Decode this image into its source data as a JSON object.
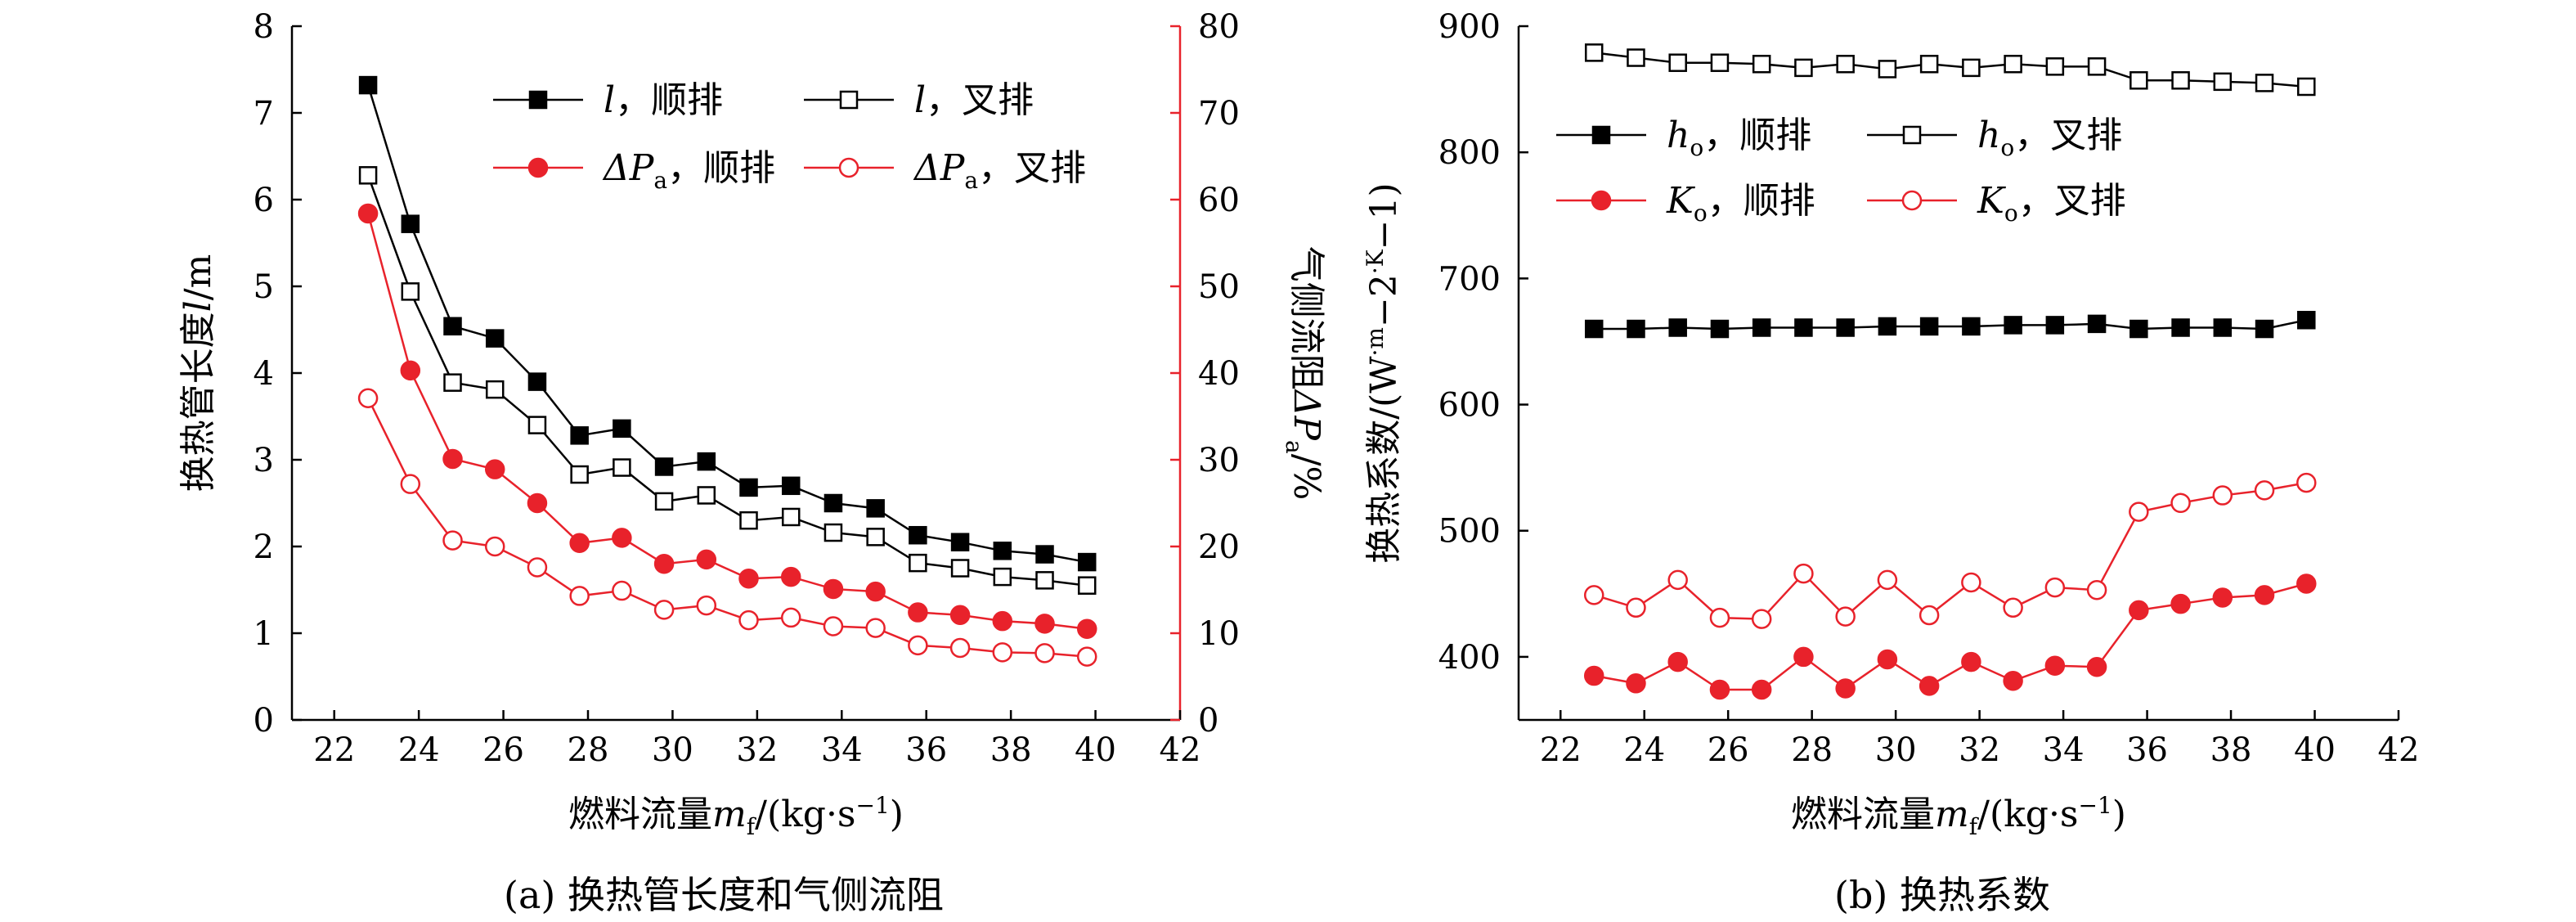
{
  "colors": {
    "black": "#000000",
    "red": "#e8222b",
    "white": "#ffffff"
  },
  "captions": {
    "a": "(a) 换热管长度和气侧流阻",
    "b": "(b) 换热系数"
  },
  "chart_data": [
    {
      "type": "line",
      "id": "a",
      "title": "(a) 换热管长度和气侧流阻",
      "x": [
        22.8,
        23.8,
        24.8,
        25.8,
        26.8,
        27.8,
        28.8,
        29.8,
        30.8,
        31.8,
        32.8,
        33.8,
        34.8,
        35.8,
        36.8,
        37.8,
        38.8,
        39.8
      ],
      "xlabel": {
        "main": "燃料流量",
        "var": "m",
        "sub": "f",
        "unit": "/(kg·s",
        "sup": "−1",
        "close": ")"
      },
      "xlim": [
        21,
        42
      ],
      "xticks": [
        22,
        24,
        26,
        28,
        30,
        32,
        34,
        36,
        38,
        40,
        42
      ],
      "ylabel_left": "换热管长度l/m",
      "ylim_left": [
        0,
        8
      ],
      "yticks_left": [
        0,
        1,
        2,
        3,
        4,
        5,
        6,
        7,
        8
      ],
      "ylabel_right": "气侧流阻ΔPa/%",
      "ylim_right": [
        0,
        80
      ],
      "yticks_right": [
        0,
        10,
        20,
        30,
        40,
        50,
        60,
        70,
        80
      ],
      "legend": "top-right",
      "series": [
        {
          "name": "l，顺排",
          "var": "l",
          "sub": "",
          "label": "，顺排",
          "axis": "left",
          "color": "#000000",
          "marker": "square",
          "filled": true,
          "values": [
            7.32,
            5.72,
            4.54,
            4.4,
            3.9,
            3.28,
            3.36,
            2.92,
            2.98,
            2.68,
            2.7,
            2.5,
            2.44,
            2.13,
            2.05,
            1.95,
            1.91,
            1.82
          ]
        },
        {
          "name": "l，叉排",
          "var": "l",
          "sub": "",
          "label": "，叉排",
          "axis": "left",
          "color": "#000000",
          "marker": "square",
          "filled": false,
          "values": [
            6.28,
            4.94,
            3.89,
            3.81,
            3.4,
            2.83,
            2.91,
            2.52,
            2.59,
            2.3,
            2.34,
            2.16,
            2.11,
            1.81,
            1.75,
            1.65,
            1.61,
            1.55
          ]
        },
        {
          "name": "ΔPa，顺排",
          "var": "ΔP",
          "sub": "a",
          "label": "，顺排",
          "axis": "right",
          "color": "#e8222b",
          "marker": "circle",
          "filled": true,
          "values": [
            58.4,
            40.3,
            30.1,
            28.9,
            25.0,
            20.4,
            21.0,
            18.0,
            18.5,
            16.3,
            16.5,
            15.1,
            14.8,
            12.4,
            12.1,
            11.4,
            11.1,
            10.5
          ]
        },
        {
          "name": "ΔPa，叉排",
          "var": "ΔP",
          "sub": "a",
          "label": "，叉排",
          "axis": "right",
          "color": "#e8222b",
          "marker": "circle",
          "filled": false,
          "values": [
            37.1,
            27.2,
            20.7,
            20.0,
            17.6,
            14.3,
            14.9,
            12.7,
            13.2,
            11.5,
            11.8,
            10.8,
            10.6,
            8.6,
            8.3,
            7.8,
            7.7,
            7.3
          ]
        }
      ]
    },
    {
      "type": "line",
      "id": "b",
      "title": "(b) 换热系数",
      "x": [
        22.8,
        23.8,
        24.8,
        25.8,
        26.8,
        27.8,
        28.8,
        29.8,
        30.8,
        31.8,
        32.8,
        33.8,
        34.8,
        35.8,
        36.8,
        37.8,
        38.8,
        39.8
      ],
      "xlabel": {
        "main": "燃料流量",
        "var": "m",
        "sub": "f",
        "unit": "/(kg·s",
        "sup": "−1",
        "close": ")"
      },
      "xlim": [
        21,
        42
      ],
      "xticks": [
        22,
        24,
        26,
        28,
        30,
        32,
        34,
        36,
        38,
        40,
        42
      ],
      "ylabel_left": "换热系数/(W·m−2·K−1)",
      "ylim_left": [
        350,
        900
      ],
      "yticks_left": [
        400,
        500,
        600,
        700,
        800,
        900
      ],
      "legend": "top-left",
      "series": [
        {
          "name": "ho，顺排",
          "var": "h",
          "sub": "o",
          "label": "，顺排",
          "axis": "left",
          "color": "#000000",
          "marker": "square",
          "filled": true,
          "values": [
            660,
            660,
            661,
            660,
            661,
            661,
            661,
            662,
            662,
            662,
            663,
            663,
            664,
            660,
            661,
            661,
            660,
            667
          ]
        },
        {
          "name": "ho，叉排",
          "var": "h",
          "sub": "o",
          "label": "，叉排",
          "axis": "left",
          "color": "#000000",
          "marker": "square",
          "filled": false,
          "values": [
            879,
            875,
            871,
            871,
            870,
            867,
            870,
            866,
            870,
            867,
            870,
            868,
            868,
            857,
            857,
            856,
            855,
            852
          ]
        },
        {
          "name": "Ko，顺排",
          "var": "K",
          "sub": "o",
          "label": "，顺排",
          "axis": "left",
          "color": "#e8222b",
          "marker": "circle",
          "filled": true,
          "values": [
            385,
            379,
            396,
            374,
            374,
            400,
            375,
            398,
            377,
            396,
            381,
            393,
            392,
            437,
            442,
            447,
            449,
            458
          ]
        },
        {
          "name": "Ko，叉排",
          "var": "K",
          "sub": "o",
          "label": "，叉排",
          "axis": "left",
          "color": "#e8222b",
          "marker": "circle",
          "filled": false,
          "values": [
            449,
            439,
            461,
            431,
            430,
            466,
            432,
            461,
            433,
            459,
            439,
            455,
            453,
            515,
            522,
            528,
            532,
            538
          ]
        }
      ]
    }
  ]
}
